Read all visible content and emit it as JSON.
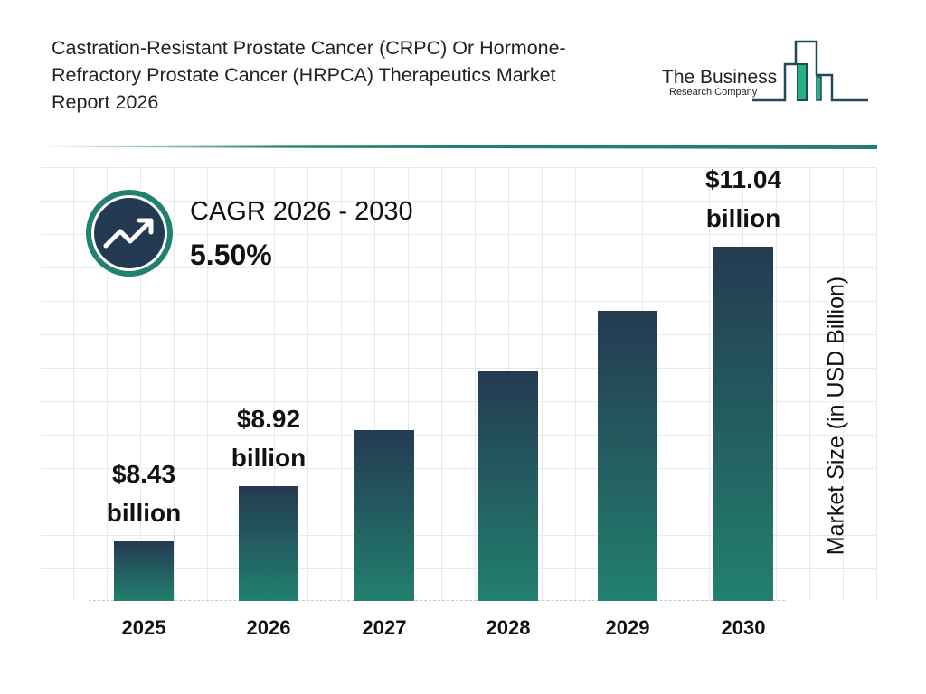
{
  "title": "Castration-Resistant Prostate Cancer (CRPC) Or Hormone-Refractory Prostate Cancer (HRPCA) Therapeutics Market Report 2026",
  "logo": {
    "line1": "The Business",
    "line2": "Research Company"
  },
  "cagr": {
    "label": "CAGR 2026 - 2030",
    "value": "5.50%",
    "icon": "trending-up-icon"
  },
  "colors": {
    "bar_top": "#243a52",
    "bar_bottom": "#22806e",
    "accent": "#22806e"
  },
  "chart_data": {
    "type": "bar",
    "categories": [
      "2025",
      "2026",
      "2027",
      "2028",
      "2029",
      "2030"
    ],
    "values": [
      8.43,
      8.92,
      9.41,
      9.93,
      10.47,
      11.04
    ],
    "data_labels": [
      {
        "index": 0,
        "line1": "$8.43",
        "line2": "billion"
      },
      {
        "index": 1,
        "line1": "$8.92",
        "line2": "billion"
      },
      {
        "index": 5,
        "line1": "$11.04",
        "line2": "billion"
      }
    ],
    "ylabel": "Market Size (in USD Billion)",
    "xlabel": "",
    "grid": true
  }
}
